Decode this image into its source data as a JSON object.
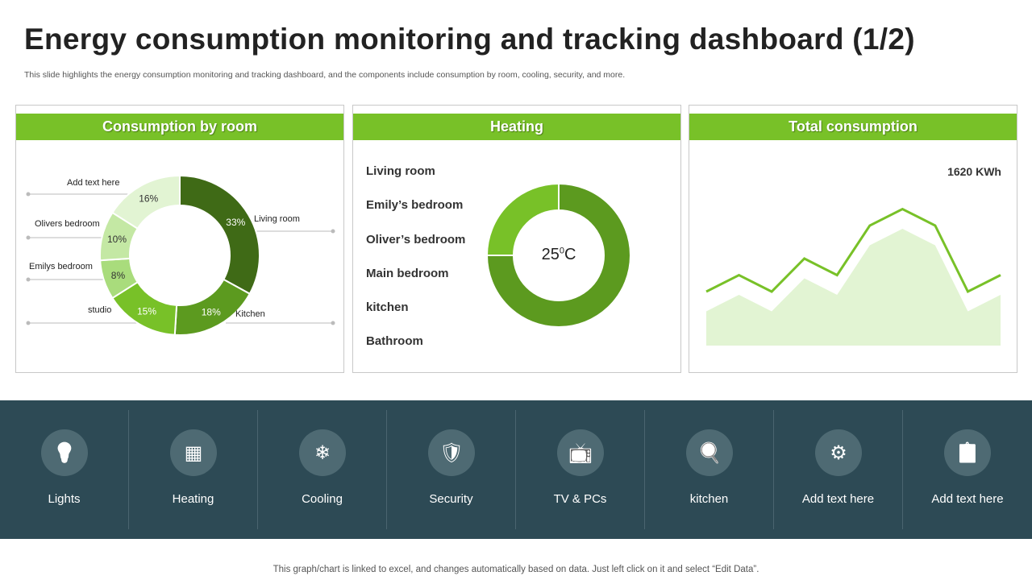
{
  "header": {
    "title": "Energy consumption monitoring and tracking dashboard (1/2)",
    "subtitle": "This slide highlights the energy consumption monitoring and tracking dashboard, and the components include consumption by room, cooling, security, and more."
  },
  "consumption": {
    "title": "Consumption by room",
    "chart_data": {
      "type": "pie",
      "donut": true,
      "categories": [
        "Living room",
        "Kitchen",
        "studio",
        "Emilys bedroom",
        "Olivers bedroom",
        "Add text here"
      ],
      "values": [
        33,
        18,
        15,
        8,
        10,
        16
      ],
      "labels": [
        "33%",
        "18%",
        "15%",
        "8%",
        "10%",
        "16%"
      ],
      "colors": [
        "#3f6a16",
        "#5c9a1f",
        "#78c128",
        "#a9dc7c",
        "#c4e8a4",
        "#e2f4d3"
      ]
    }
  },
  "heating": {
    "title": "Heating",
    "rooms": [
      "Living room",
      "Emily’s bedroom",
      "Oliver’s bedroom",
      "Main bedroom",
      "kitchen",
      "Bathroom"
    ],
    "center_value": "25",
    "center_unit": "0",
    "center_suffix": "C",
    "chart_data": {
      "type": "pie",
      "donut": true,
      "values": [
        75,
        25
      ],
      "colors": [
        "#5c9a1f",
        "#78c128"
      ]
    }
  },
  "total": {
    "title": "Total consumption",
    "value_label": "1620 KWh",
    "chart_data": {
      "type": "area",
      "series": [
        {
          "values": [
            4,
            5,
            4,
            6,
            5,
            8,
            9,
            8,
            4,
            5
          ],
          "color": "#78c128"
        },
        {
          "values": [
            3,
            4,
            3,
            5,
            4,
            7,
            8,
            7,
            3,
            4
          ],
          "color": "#e2f4d3"
        }
      ]
    }
  },
  "categories": [
    {
      "label": "Lights",
      "icon": "lightbulb-icon"
    },
    {
      "label": "Heating",
      "icon": "heater-icon"
    },
    {
      "label": "Cooling",
      "icon": "air-conditioner-icon"
    },
    {
      "label": "Security",
      "icon": "shield-lock-icon"
    },
    {
      "label": "TV & PCs",
      "icon": "tv-icon"
    },
    {
      "label": "kitchen",
      "icon": "kitchen-icon"
    },
    {
      "label": "Add text here",
      "icon": "document-gear-icon"
    },
    {
      "label": "Add text here",
      "icon": "document-checklist-icon"
    }
  ],
  "footer": "This graph/chart is linked to excel, and changes automatically based on data. Just left click on it and select “Edit Data”."
}
